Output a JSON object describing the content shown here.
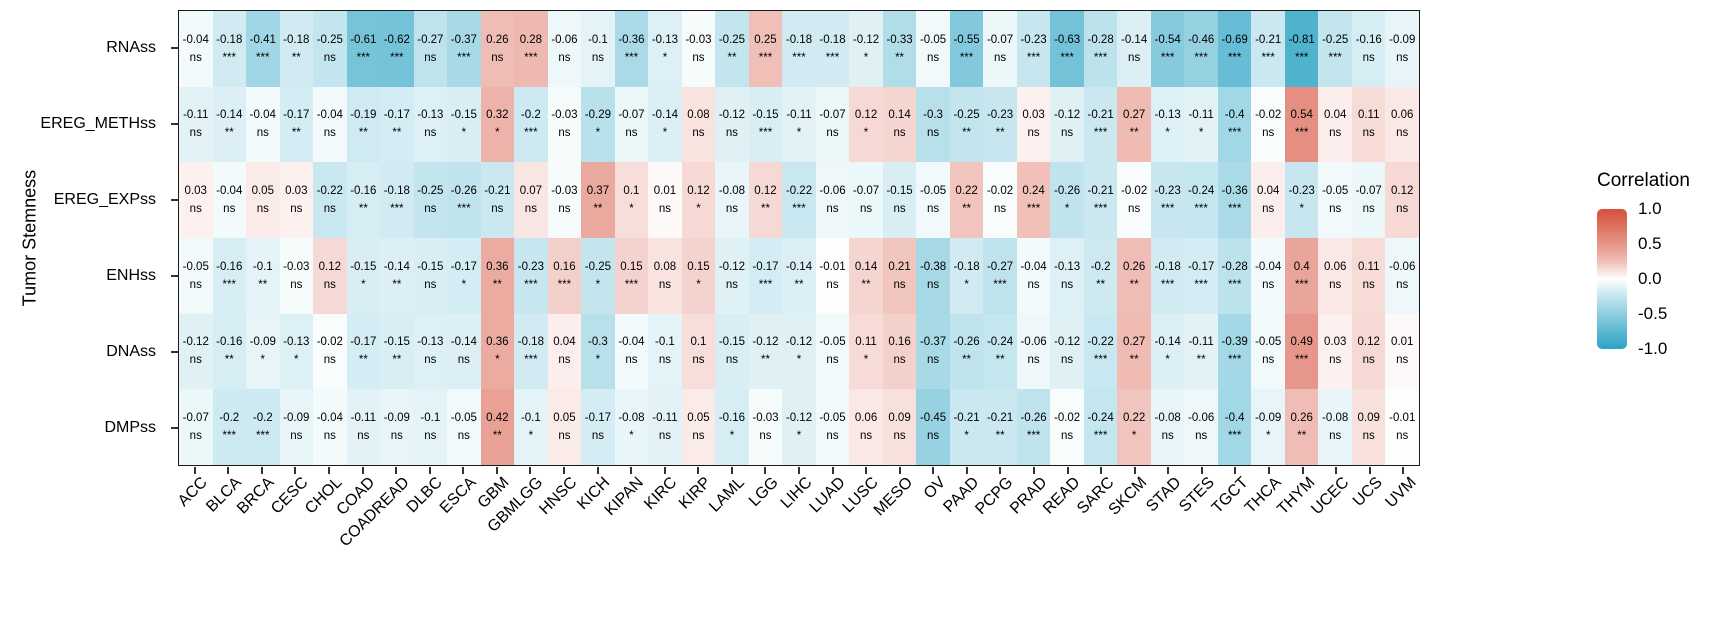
{
  "figure": {
    "y_axis_title": "Tumor Stemness"
  },
  "legend": {
    "title": "Correlation",
    "tick_labels": [
      "1.0",
      "0.5",
      "0.0",
      "-0.5",
      "-1.0"
    ]
  },
  "colors": {
    "positive_end": "#D5503B",
    "negative_end": "#2BA3C4",
    "zero": "#FFFFFF",
    "panel_border": "#1A1A1A",
    "tick": "#333333",
    "text": "#000000"
  },
  "significance_levels": [
    "ns",
    "*",
    "**",
    "***"
  ],
  "chart_data": {
    "type": "heatmap",
    "title": "",
    "xlabel": "",
    "ylabel": "Tumor Stemness",
    "legend_title": "Correlation",
    "legend_position": "right",
    "color_domain": [
      -1,
      0,
      1
    ],
    "legend_ticks": [
      1.0,
      0.5,
      0.0,
      -0.5,
      -1.0
    ],
    "cell_annotation": "correlation value above significance marker (ns, *, **, ***)",
    "columns": [
      "ACC",
      "BLCA",
      "BRCA",
      "CESC",
      "CHOL",
      "COAD",
      "COADREAD",
      "DLBC",
      "ESCA",
      "GBM",
      "GBMLGG",
      "HNSC",
      "KICH",
      "KIPAN",
      "KIRC",
      "KIRP",
      "LAML",
      "LGG",
      "LIHC",
      "LUAD",
      "LUSC",
      "MESO",
      "OV",
      "PAAD",
      "PCPG",
      "PRAD",
      "READ",
      "SARC",
      "SKCM",
      "STAD",
      "STES",
      "TGCT",
      "THCA",
      "THYM",
      "UCEC",
      "UCS",
      "UVM"
    ],
    "rows": [
      "RNAss",
      "EREG_METHss",
      "EREG_EXPss",
      "ENHss",
      "DNAss",
      "DMPss"
    ],
    "series": [
      {
        "name": "RNAss",
        "values": [
          -0.04,
          -0.18,
          -0.41,
          -0.18,
          -0.25,
          -0.61,
          -0.62,
          -0.27,
          -0.37,
          0.26,
          0.28,
          -0.06,
          -0.1,
          -0.36,
          -0.13,
          -0.03,
          -0.25,
          0.25,
          -0.18,
          -0.18,
          -0.12,
          -0.33,
          -0.05,
          -0.55,
          -0.07,
          -0.23,
          -0.63,
          -0.28,
          -0.14,
          -0.54,
          -0.46,
          -0.69,
          -0.21,
          -0.81,
          -0.25,
          -0.16,
          -0.09
        ],
        "significance": [
          "ns",
          "***",
          "***",
          "**",
          "ns",
          "***",
          "***",
          "ns",
          "***",
          "ns",
          "***",
          "ns",
          "ns",
          "***",
          "*",
          "ns",
          "**",
          "***",
          "***",
          "***",
          "*",
          "**",
          "ns",
          "***",
          "ns",
          "***",
          "***",
          "***",
          "ns",
          "***",
          "***",
          "***",
          "***",
          "***",
          "***",
          "ns",
          "ns"
        ]
      },
      {
        "name": "EREG_METHss",
        "values": [
          -0.11,
          -0.14,
          -0.04,
          -0.17,
          -0.04,
          -0.19,
          -0.17,
          -0.13,
          -0.15,
          0.32,
          -0.2,
          -0.03,
          -0.29,
          -0.07,
          -0.14,
          0.08,
          -0.12,
          -0.15,
          -0.11,
          -0.07,
          0.12,
          0.14,
          -0.3,
          -0.25,
          -0.23,
          0.03,
          -0.12,
          -0.21,
          0.27,
          -0.13,
          -0.11,
          -0.4,
          -0.02,
          0.54,
          0.04,
          0.11,
          0.06
        ],
        "significance": [
          "ns",
          "**",
          "ns",
          "**",
          "ns",
          "**",
          "**",
          "ns",
          "*",
          "*",
          "***",
          "ns",
          "*",
          "ns",
          "*",
          "ns",
          "ns",
          "***",
          "*",
          "ns",
          "*",
          "ns",
          "ns",
          "**",
          "**",
          "ns",
          "ns",
          "***",
          "**",
          "*",
          "*",
          "***",
          "ns",
          "***",
          "ns",
          "ns",
          "ns"
        ]
      },
      {
        "name": "EREG_EXPss",
        "values": [
          0.03,
          -0.04,
          0.05,
          0.03,
          -0.22,
          -0.16,
          -0.18,
          -0.25,
          -0.26,
          -0.21,
          0.07,
          -0.03,
          0.37,
          0.1,
          0.01,
          0.12,
          -0.08,
          0.12,
          -0.22,
          -0.06,
          -0.07,
          -0.15,
          -0.05,
          0.22,
          -0.02,
          0.24,
          -0.26,
          -0.21,
          -0.02,
          -0.23,
          -0.24,
          -0.36,
          0.04,
          -0.23,
          -0.05,
          -0.07,
          0.12
        ],
        "significance": [
          "ns",
          "ns",
          "ns",
          "ns",
          "ns",
          "**",
          "***",
          "ns",
          "***",
          "ns",
          "ns",
          "ns",
          "**",
          "*",
          "ns",
          "*",
          "ns",
          "**",
          "***",
          "ns",
          "ns",
          "ns",
          "ns",
          "**",
          "ns",
          "***",
          "*",
          "***",
          "ns",
          "***",
          "***",
          "***",
          "ns",
          "*",
          "ns",
          "ns",
          "ns"
        ]
      },
      {
        "name": "ENHss",
        "values": [
          -0.05,
          -0.16,
          -0.1,
          -0.03,
          0.12,
          -0.15,
          -0.14,
          -0.15,
          -0.17,
          0.36,
          -0.23,
          0.16,
          -0.25,
          0.15,
          0.08,
          0.15,
          -0.12,
          -0.17,
          -0.14,
          -0.01,
          0.14,
          0.21,
          -0.38,
          -0.18,
          -0.27,
          -0.04,
          -0.13,
          -0.2,
          0.26,
          -0.18,
          -0.17,
          -0.28,
          -0.04,
          0.4,
          0.06,
          0.11,
          -0.06
        ],
        "significance": [
          "ns",
          "***",
          "**",
          "ns",
          "ns",
          "*",
          "**",
          "ns",
          "*",
          "**",
          "***",
          "***",
          "*",
          "***",
          "ns",
          "*",
          "ns",
          "***",
          "**",
          "ns",
          "**",
          "ns",
          "ns",
          "*",
          "***",
          "ns",
          "ns",
          "**",
          "**",
          "***",
          "***",
          "***",
          "ns",
          "***",
          "ns",
          "ns",
          "ns"
        ]
      },
      {
        "name": "DNAss",
        "values": [
          -0.12,
          -0.16,
          -0.09,
          -0.13,
          -0.02,
          -0.17,
          -0.15,
          -0.13,
          -0.14,
          0.36,
          -0.18,
          0.04,
          -0.3,
          -0.04,
          -0.1,
          0.1,
          -0.15,
          -0.12,
          -0.12,
          -0.05,
          0.11,
          0.16,
          -0.37,
          -0.26,
          -0.24,
          -0.06,
          -0.12,
          -0.22,
          0.27,
          -0.14,
          -0.11,
          -0.39,
          -0.05,
          0.49,
          0.03,
          0.12,
          0.01
        ],
        "significance": [
          "ns",
          "**",
          "*",
          "*",
          "ns",
          "**",
          "**",
          "ns",
          "ns",
          "*",
          "***",
          "ns",
          "*",
          "ns",
          "ns",
          "ns",
          "ns",
          "**",
          "*",
          "ns",
          "*",
          "ns",
          "ns",
          "**",
          "**",
          "ns",
          "ns",
          "***",
          "**",
          "*",
          "**",
          "***",
          "ns",
          "***",
          "ns",
          "ns",
          "ns"
        ]
      },
      {
        "name": "DMPss",
        "values": [
          -0.07,
          -0.2,
          -0.2,
          -0.09,
          -0.04,
          -0.11,
          -0.09,
          -0.1,
          -0.05,
          0.42,
          -0.1,
          0.05,
          -0.17,
          -0.08,
          -0.11,
          0.05,
          -0.16,
          -0.03,
          -0.12,
          -0.05,
          0.06,
          0.09,
          -0.45,
          -0.21,
          -0.21,
          -0.26,
          -0.02,
          -0.24,
          0.22,
          -0.08,
          -0.06,
          -0.4,
          -0.09,
          0.26,
          -0.08,
          0.09,
          -0.01
        ],
        "significance": [
          "ns",
          "***",
          "***",
          "ns",
          "ns",
          "ns",
          "ns",
          "ns",
          "ns",
          "**",
          "*",
          "ns",
          "ns",
          "*",
          "ns",
          "ns",
          "*",
          "ns",
          "*",
          "ns",
          "ns",
          "ns",
          "ns",
          "*",
          "**",
          "***",
          "ns",
          "***",
          "*",
          "ns",
          "ns",
          "***",
          "*",
          "**",
          "ns",
          "ns",
          "ns"
        ]
      }
    ]
  }
}
